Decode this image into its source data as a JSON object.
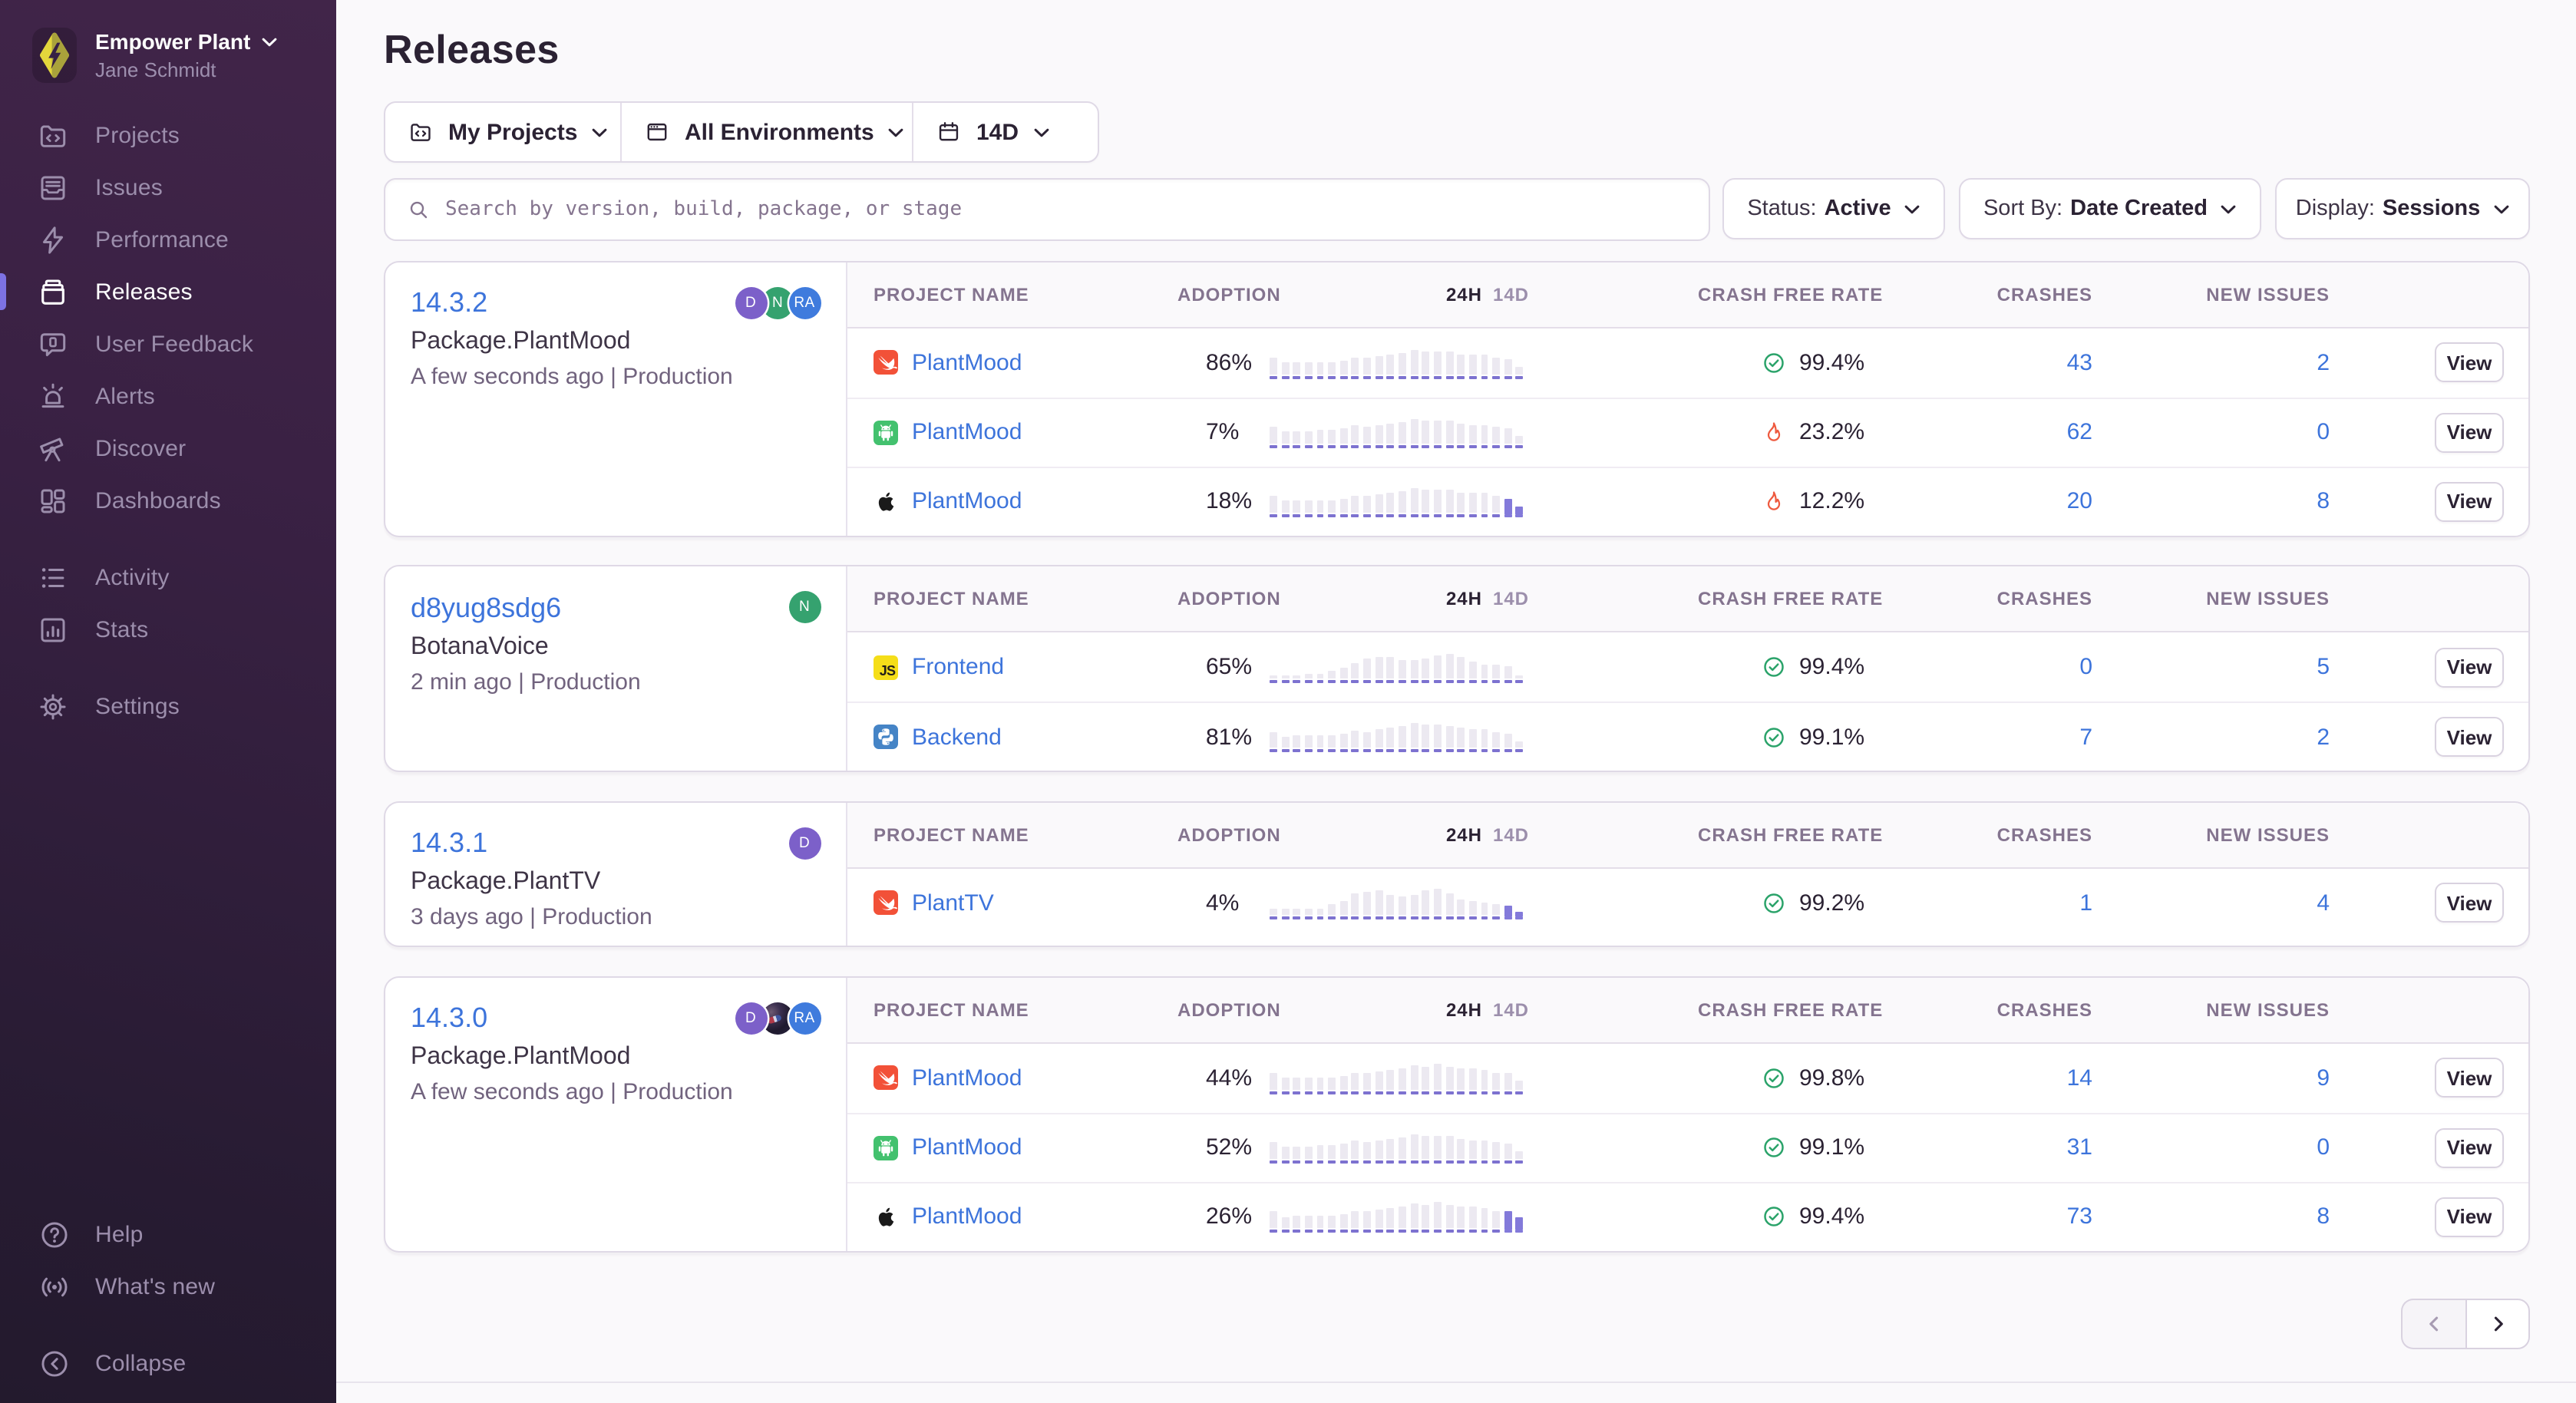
{
  "sidebar": {
    "org_name": "Empower Plant",
    "user_name": "Jane Schmidt",
    "logo_colors": {
      "bright": "#E8DF3A",
      "dark": "#ABA43C"
    },
    "items": [
      {
        "label": "Projects",
        "icon": "projects",
        "active": false
      },
      {
        "label": "Issues",
        "icon": "issues",
        "active": false
      },
      {
        "label": "Performance",
        "icon": "performance",
        "active": false
      },
      {
        "label": "Releases",
        "icon": "releases",
        "active": true
      },
      {
        "label": "User Feedback",
        "icon": "feedback",
        "active": false
      },
      {
        "label": "Alerts",
        "icon": "alerts",
        "active": false
      },
      {
        "label": "Discover",
        "icon": "discover",
        "active": false
      },
      {
        "label": "Dashboards",
        "icon": "dashboards",
        "active": false,
        "group_end": true
      },
      {
        "label": "Activity",
        "icon": "activity",
        "active": false
      },
      {
        "label": "Stats",
        "icon": "stats",
        "active": false,
        "group_end": true
      },
      {
        "label": "Settings",
        "icon": "settings",
        "active": false
      }
    ],
    "footer_items": [
      {
        "label": "Help",
        "icon": "help"
      },
      {
        "label": "What's new",
        "icon": "broadcast",
        "group_end": true
      },
      {
        "label": "Collapse",
        "icon": "collapse"
      }
    ]
  },
  "header": {
    "title": "Releases"
  },
  "filters": {
    "projects": {
      "label": "My Projects",
      "icon": "folder-code"
    },
    "environments": {
      "label": "All Environments",
      "icon": "window"
    },
    "date_range": {
      "label": "14D",
      "icon": "calendar"
    }
  },
  "search": {
    "placeholder": "Search by version, build, package, or stage",
    "value": ""
  },
  "controls": {
    "status": {
      "label": "Status:",
      "value": "Active"
    },
    "sort": {
      "label": "Sort By:",
      "value": "Date Created"
    },
    "display": {
      "label": "Display:",
      "value": "Sessions"
    }
  },
  "table_columns": {
    "project": "PROJECT NAME",
    "adoption": "ADOPTION",
    "trend_24h": "24H",
    "trend_14d": "14D",
    "crash_free": "CRASH FREE RATE",
    "crashes": "CRASHES",
    "new_issues": "NEW ISSUES"
  },
  "view_label": "View",
  "releases": [
    {
      "version": "14.3.2",
      "package": "Package.PlantMood",
      "meta": "A few seconds ago | Production",
      "avatars": [
        {
          "type": "letter",
          "initials": "D",
          "color": "#7C60C9"
        },
        {
          "type": "letter",
          "initials": "N",
          "color": "#35A26F"
        },
        {
          "type": "letter",
          "initials": "RA",
          "color": "#3F7BDD"
        }
      ],
      "rows": [
        {
          "platform": "swift",
          "project": "PlantMood",
          "adoption": "86%",
          "crash_free": "99.4%",
          "crash_free_status": "good",
          "crashes": "43",
          "new_issues": "2",
          "spark": {
            "bars": [
              0.63,
              0.44,
              0.44,
              0.47,
              0.47,
              0.47,
              0.53,
              0.63,
              0.6,
              0.66,
              0.72,
              0.8,
              0.93,
              0.87,
              0.87,
              0.84,
              0.74,
              0.72,
              0.72,
              0.63,
              0.55,
              0.28
            ],
            "purple_tail": 0
          }
        },
        {
          "platform": "android",
          "project": "PlantMood",
          "adoption": "7%",
          "crash_free": "23.2%",
          "crash_free_status": "bad",
          "crashes": "62",
          "new_issues": "0",
          "spark": {
            "bars": [
              0.62,
              0.44,
              0.46,
              0.46,
              0.48,
              0.5,
              0.55,
              0.65,
              0.62,
              0.68,
              0.74,
              0.82,
              0.92,
              0.88,
              0.86,
              0.84,
              0.74,
              0.7,
              0.7,
              0.62,
              0.55,
              0.26
            ],
            "purple_tail": 0
          }
        },
        {
          "platform": "apple",
          "project": "PlantMood",
          "adoption": "18%",
          "crash_free": "12.2%",
          "crash_free_status": "bad",
          "crashes": "20",
          "new_issues": "8",
          "spark": {
            "bars": [
              0.63,
              0.44,
              0.44,
              0.47,
              0.47,
              0.47,
              0.53,
              0.63,
              0.6,
              0.66,
              0.72,
              0.8,
              0.93,
              0.87,
              0.87,
              0.84,
              0.74,
              0.72,
              0.72,
              0.63,
              0.55,
              0.28
            ],
            "purple_tail": 2
          }
        }
      ]
    },
    {
      "version": "d8yug8sdg6",
      "package": "BotanaVoice",
      "meta": "2 min ago | Production",
      "avatars": [
        {
          "type": "letter",
          "initials": "N",
          "color": "#35A26F"
        }
      ],
      "rows": [
        {
          "platform": "js",
          "project": "Frontend",
          "adoption": "65%",
          "crash_free": "99.4%",
          "crash_free_status": "good",
          "crashes": "0",
          "new_issues": "5",
          "spark": {
            "bars": [
              0.15,
              0.15,
              0.15,
              0.17,
              0.2,
              0.3,
              0.42,
              0.58,
              0.78,
              0.85,
              0.8,
              0.7,
              0.72,
              0.76,
              0.9,
              0.94,
              0.8,
              0.64,
              0.56,
              0.52,
              0.46,
              0.12
            ],
            "purple_tail": 0
          }
        },
        {
          "platform": "python",
          "project": "Backend",
          "adoption": "81%",
          "crash_free": "99.1%",
          "crash_free_status": "good",
          "crashes": "7",
          "new_issues": "2",
          "spark": {
            "bars": [
              0.62,
              0.44,
              0.46,
              0.46,
              0.48,
              0.5,
              0.55,
              0.65,
              0.62,
              0.68,
              0.74,
              0.82,
              0.92,
              0.88,
              0.86,
              0.84,
              0.74,
              0.7,
              0.7,
              0.62,
              0.55,
              0.26
            ],
            "purple_tail": 0
          }
        }
      ]
    },
    {
      "version": "14.3.1",
      "package": "Package.PlantTV",
      "meta": "3 days ago | Production",
      "avatars": [
        {
          "type": "letter",
          "initials": "D",
          "color": "#7C60C9"
        }
      ],
      "rows": [
        {
          "platform": "swift",
          "project": "PlantTV",
          "adoption": "4%",
          "crash_free": "99.2%",
          "crash_free_status": "good",
          "crashes": "1",
          "new_issues": "4",
          "spark": {
            "bars": [
              0.18,
              0.18,
              0.2,
              0.18,
              0.23,
              0.38,
              0.53,
              0.79,
              0.88,
              0.91,
              0.73,
              0.7,
              0.76,
              0.94,
              0.97,
              0.79,
              0.59,
              0.5,
              0.44,
              0.38,
              0.41,
              0.15
            ],
            "purple_tail": 2
          }
        }
      ]
    },
    {
      "version": "14.3.0",
      "package": "Package.PlantMood",
      "meta": "A few seconds ago | Production",
      "avatars": [
        {
          "type": "letter",
          "initials": "D",
          "color": "#7C60C9"
        },
        {
          "type": "photo",
          "initials": "",
          "color": ""
        },
        {
          "type": "letter",
          "initials": "RA",
          "color": "#3F7BDD"
        }
      ],
      "rows": [
        {
          "platform": "swift",
          "project": "PlantMood",
          "adoption": "44%",
          "crash_free": "99.8%",
          "crash_free_status": "good",
          "crashes": "14",
          "new_issues": "9",
          "spark": {
            "bars": [
              0.64,
              0.42,
              0.44,
              0.44,
              0.47,
              0.47,
              0.53,
              0.64,
              0.64,
              0.7,
              0.76,
              0.82,
              0.91,
              0.88,
              0.97,
              0.88,
              0.82,
              0.82,
              0.76,
              0.64,
              0.6,
              0.3
            ],
            "purple_tail": 0
          }
        },
        {
          "platform": "android",
          "project": "PlantMood",
          "adoption": "52%",
          "crash_free": "99.1%",
          "crash_free_status": "good",
          "crashes": "31",
          "new_issues": "0",
          "spark": {
            "bars": [
              0.62,
              0.44,
              0.46,
              0.46,
              0.48,
              0.5,
              0.55,
              0.65,
              0.62,
              0.68,
              0.74,
              0.82,
              0.92,
              0.88,
              0.86,
              0.84,
              0.74,
              0.7,
              0.7,
              0.62,
              0.55,
              0.26
            ],
            "purple_tail": 0
          }
        },
        {
          "platform": "apple",
          "project": "PlantMood",
          "adoption": "26%",
          "crash_free": "99.4%",
          "crash_free_status": "good",
          "crashes": "73",
          "new_issues": "8",
          "spark": {
            "bars": [
              0.64,
              0.41,
              0.44,
              0.44,
              0.47,
              0.47,
              0.53,
              0.64,
              0.64,
              0.7,
              0.76,
              0.82,
              0.91,
              0.88,
              0.97,
              0.88,
              0.82,
              0.82,
              0.76,
              0.64,
              0.67,
              0.47
            ],
            "purple_tail": 2
          }
        }
      ]
    }
  ],
  "pagination": {
    "prev_enabled": false,
    "next_enabled": true
  },
  "colors": {
    "accent_blue": "#3D74DB",
    "good_green": "#2BA36A",
    "bad_red": "#EE5A3F",
    "active_indicator": "#7D72E3",
    "spark_bar": "#ECE9F1",
    "spark_purple": "#8378DB"
  }
}
